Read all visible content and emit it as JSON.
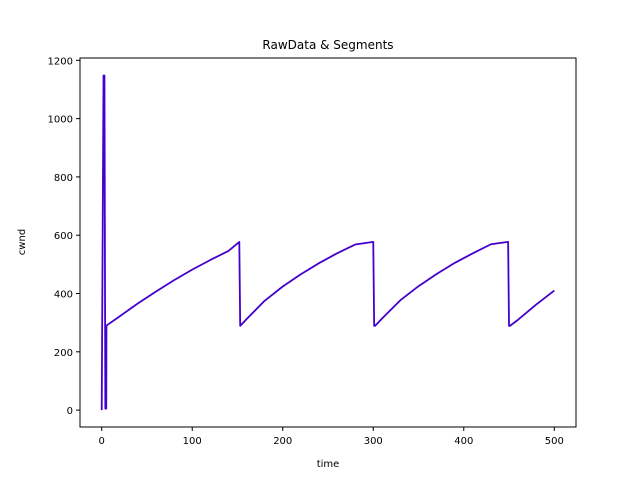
{
  "chart_data": {
    "type": "line",
    "title": "RawData & Segments",
    "xlabel": "time",
    "ylabel": "cwnd",
    "xlim": [
      -24,
      524
    ],
    "ylim": [
      -58,
      1208
    ],
    "xticks": [
      0,
      100,
      200,
      300,
      400,
      500
    ],
    "yticks": [
      0,
      200,
      400,
      600,
      800,
      1000,
      1200
    ],
    "grid": false,
    "legend": "none",
    "series": [
      {
        "color": "#4400cc",
        "x": [
          0,
          1,
          2,
          3,
          4,
          5,
          5.2,
          20,
          40,
          60,
          80,
          100,
          120,
          140,
          152,
          153,
          160,
          180,
          200,
          220,
          240,
          260,
          280,
          300,
          301,
          302,
          310,
          330,
          350,
          370,
          390,
          410,
          430,
          449,
          450,
          451,
          460,
          480,
          500
        ],
        "y": [
          0,
          580,
          1148,
          1148,
          5,
          5,
          290,
          322,
          366,
          407,
          446,
          482,
          515,
          546,
          577,
          289,
          312,
          375,
          424,
          466,
          504,
          538,
          568,
          577,
          289,
          289,
          315,
          377,
          425,
          467,
          505,
          538,
          569,
          577,
          289,
          289,
          310,
          362,
          410
        ]
      }
    ]
  }
}
